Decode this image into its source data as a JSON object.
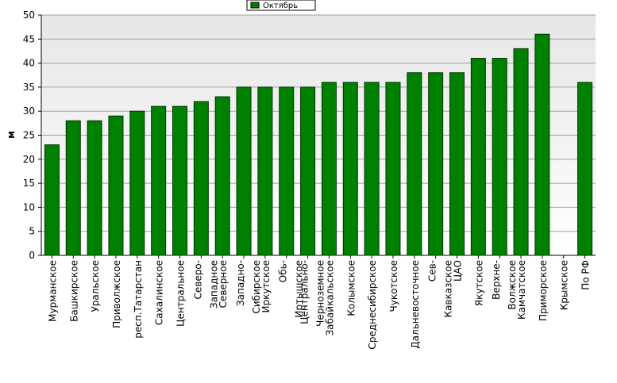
{
  "chart_data": {
    "type": "bar",
    "y_label": "м",
    "categories": [
      "Мурманское",
      "Башкирское",
      "Уральское",
      "Приволжское",
      "респ.Татарстан",
      "Сахалинское",
      "Центральное",
      "Северо-Западное",
      "Северное",
      "Западно-Сибирское",
      "Иркутское",
      "Обь-Иртышское",
      "Центрально-Черноземное",
      "Забайкальское",
      "Колымское",
      "Среднесибирское",
      "Чукотское",
      "Дальневосточное",
      "Сев-Кавказское",
      "ЦАО",
      "Якутское",
      "Верхне-Волжское",
      "Камчатское",
      "Приморское",
      "Крымское",
      "По РФ"
    ],
    "series": [
      {
        "name": "Октябрь",
        "color": "#008000",
        "values": [
          23,
          28,
          28,
          29,
          30,
          31,
          31,
          32,
          33,
          35,
          35,
          35,
          35,
          36,
          36,
          36,
          36,
          38,
          38,
          38,
          41,
          41,
          43,
          46,
          null,
          36
        ]
      }
    ],
    "ylim": [
      0,
      50
    ],
    "yticks": [
      0,
      5,
      10,
      15,
      20,
      25,
      30,
      35,
      40,
      45,
      50
    ],
    "grid": true,
    "legend": "top"
  }
}
